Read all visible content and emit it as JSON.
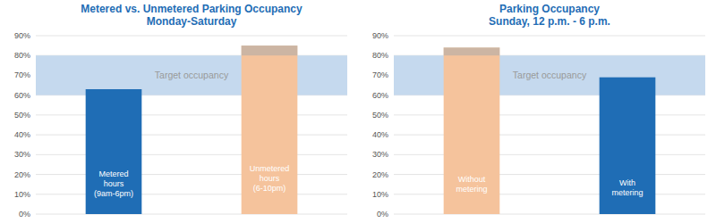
{
  "chart_data": [
    {
      "type": "bar",
      "title": "Metered vs. Unmetered Parking Occupancy\nMonday-Saturday",
      "categories": [
        "Metered\nhours\n(9am-6pm)",
        "Unmetered\nhours\n(6-10pm)"
      ],
      "values": [
        63,
        85
      ],
      "colors": [
        "#1F6DB5",
        "#F5C39C"
      ],
      "target_band": {
        "low": 60,
        "high": 80,
        "label": "Target occupancy",
        "color": "#C5D9EE"
      },
      "ylim": [
        0,
        90
      ],
      "yticks": [
        {
          "value": 0,
          "label": "0%"
        },
        {
          "value": 10,
          "label": "10%"
        },
        {
          "value": 20,
          "label": "20%"
        },
        {
          "value": 30,
          "label": "30%"
        },
        {
          "value": 40,
          "label": "40%"
        },
        {
          "value": 50,
          "label": "50%"
        },
        {
          "value": 60,
          "label": "60%"
        },
        {
          "value": 70,
          "label": "70%"
        },
        {
          "value": 80,
          "label": "80%"
        },
        {
          "value": 90,
          "label": "90%"
        }
      ],
      "grid": true
    },
    {
      "type": "bar",
      "title": "Parking Occupancy\nSunday, 12 p.m. - 6 p.m.",
      "categories": [
        "Without\nmetering",
        "With\nmetering"
      ],
      "values": [
        84,
        69
      ],
      "colors": [
        "#F5C39C",
        "#1F6DB5"
      ],
      "target_band": {
        "low": 60,
        "high": 80,
        "label": "Target occupancy",
        "color": "#C5D9EE"
      },
      "ylim": [
        0,
        90
      ],
      "yticks": [
        {
          "value": 0,
          "label": "0%"
        },
        {
          "value": 10,
          "label": "10%"
        },
        {
          "value": 20,
          "label": "20%"
        },
        {
          "value": 30,
          "label": "30%"
        },
        {
          "value": 40,
          "label": "40%"
        },
        {
          "value": 50,
          "label": "50%"
        },
        {
          "value": 60,
          "label": "60%"
        },
        {
          "value": 70,
          "label": "70%"
        },
        {
          "value": 80,
          "label": "80%"
        },
        {
          "value": 90,
          "label": "90%"
        }
      ],
      "grid": true
    }
  ]
}
